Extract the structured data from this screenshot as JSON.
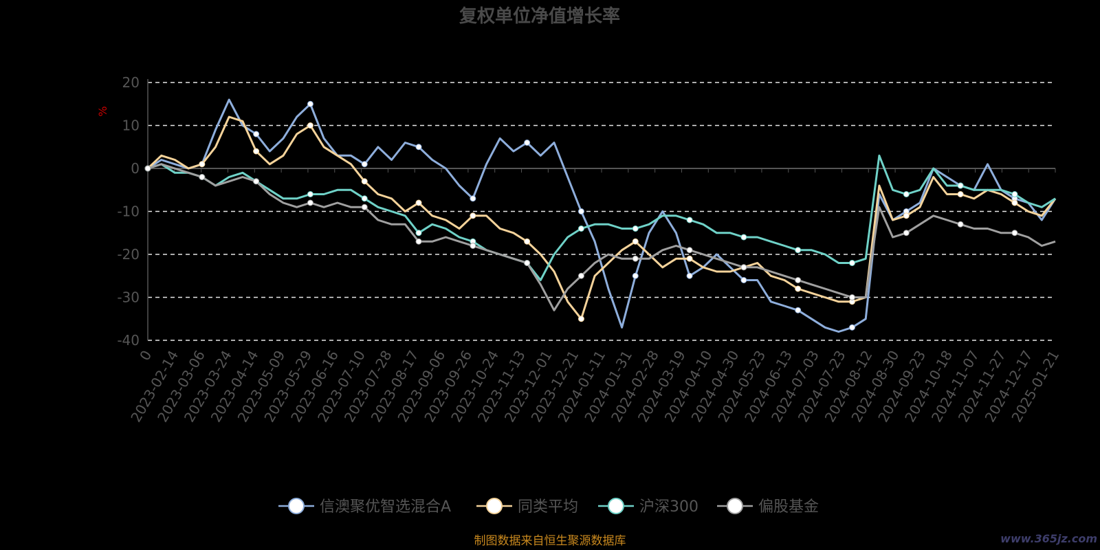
{
  "chart_data": {
    "type": "line",
    "title": "复权单位净值增长率",
    "ylabel": "%",
    "ylim": [
      -40,
      20
    ],
    "yticks": [
      20,
      10,
      0,
      -10,
      -20,
      -30,
      -40
    ],
    "x_tick_labels": [
      "0",
      "2023-02-14",
      "2023-03-06",
      "2023-03-24",
      "2023-04-14",
      "2023-05-09",
      "2023-05-29",
      "2023-06-16",
      "2023-07-10",
      "2023-07-28",
      "2023-08-17",
      "2023-09-06",
      "2023-09-26",
      "2023-10-24",
      "2023-11-13",
      "2023-12-01",
      "2023-12-21",
      "2024-01-11",
      "2024-01-31",
      "2024-02-28",
      "2024-03-19",
      "2024-04-10",
      "2024-04-30",
      "2024-05-23",
      "2024-06-13",
      "2024-07-03",
      "2024-07-23",
      "2024-08-12",
      "2024-08-30",
      "2024-09-23",
      "2024-10-18",
      "2024-11-07",
      "2024-11-27",
      "2024-12-17",
      "2025-01-21"
    ],
    "grid": "horizontal-dashed",
    "legend_position": "bottom",
    "series": [
      {
        "name": "信澳聚优智选混合A",
        "color": "#8eaedc",
        "values": [
          0,
          2,
          1,
          0,
          1,
          9,
          16,
          10,
          8,
          4,
          7,
          12,
          15,
          7,
          3,
          3,
          1,
          5,
          2,
          6,
          5,
          2,
          0,
          -4,
          -7,
          1,
          7,
          4,
          6,
          3,
          6,
          -2,
          -10,
          -17,
          -28,
          -37,
          -25,
          -15,
          -10,
          -15,
          -25,
          -23,
          -20,
          -23,
          -26,
          -26,
          -31,
          -32,
          -33,
          -35,
          -37,
          -38,
          -37,
          -35,
          -6,
          -12,
          -10,
          -8,
          0,
          -2,
          -4,
          -5,
          1,
          -5,
          -7,
          -8,
          -12,
          -7
        ]
      },
      {
        "name": "同类平均",
        "color": "#f5d39a",
        "values": [
          0,
          3,
          2,
          0,
          1,
          5,
          12,
          11,
          4,
          1,
          3,
          8,
          10,
          5,
          3,
          1,
          -3,
          -6,
          -7,
          -10,
          -8,
          -11,
          -12,
          -14,
          -11,
          -11,
          -14,
          -15,
          -17,
          -20,
          -24,
          -31,
          -35,
          -25,
          -22,
          -19,
          -17,
          -20,
          -23,
          -21,
          -21,
          -23,
          -24,
          -24,
          -23,
          -22,
          -25,
          -26,
          -28,
          -29,
          -30,
          -31,
          -31,
          -30,
          -4,
          -12,
          -11,
          -9,
          -2,
          -6,
          -6,
          -7,
          -5,
          -6,
          -8,
          -10,
          -11,
          -7
        ]
      },
      {
        "name": "沪深300",
        "color": "#6fd2c8",
        "values": [
          0,
          1,
          -1,
          -1,
          -2,
          -4,
          -2,
          -1,
          -3,
          -5,
          -7,
          -7,
          -6,
          -6,
          -5,
          -5,
          -7,
          -9,
          -10,
          -11,
          -15,
          -13,
          -14,
          -16,
          -17,
          -19,
          -20,
          -21,
          -22,
          -26,
          -20,
          -16,
          -14,
          -13,
          -13,
          -14,
          -14,
          -13,
          -11,
          -11,
          -12,
          -13,
          -15,
          -15,
          -16,
          -16,
          -17,
          -18,
          -19,
          -19,
          -20,
          -22,
          -22,
          -21,
          3,
          -5,
          -6,
          -5,
          0,
          -4,
          -4,
          -5,
          -5,
          -5,
          -6,
          -8,
          -9,
          -7
        ]
      },
      {
        "name": "偏股基金",
        "color": "#a0a0a0",
        "values": [
          0,
          1,
          0,
          -1,
          -2,
          -4,
          -3,
          -2,
          -3,
          -6,
          -8,
          -9,
          -8,
          -9,
          -8,
          -9,
          -9,
          -12,
          -13,
          -13,
          -17,
          -17,
          -16,
          -17,
          -18,
          -19,
          -20,
          -21,
          -22,
          -27,
          -33,
          -28,
          -25,
          -22,
          -20,
          -21,
          -21,
          -21,
          -19,
          -18,
          -19,
          -20,
          -21,
          -22,
          -23,
          -23,
          -24,
          -25,
          -26,
          -27,
          -28,
          -29,
          -30,
          -30,
          -9,
          -16,
          -15,
          -13,
          -11,
          -12,
          -13,
          -14,
          -14,
          -15,
          -15,
          -16,
          -18,
          -17
        ]
      }
    ],
    "source_note": "制图数据来自恒生聚源数据库",
    "watermark": "www.365jz.com"
  }
}
